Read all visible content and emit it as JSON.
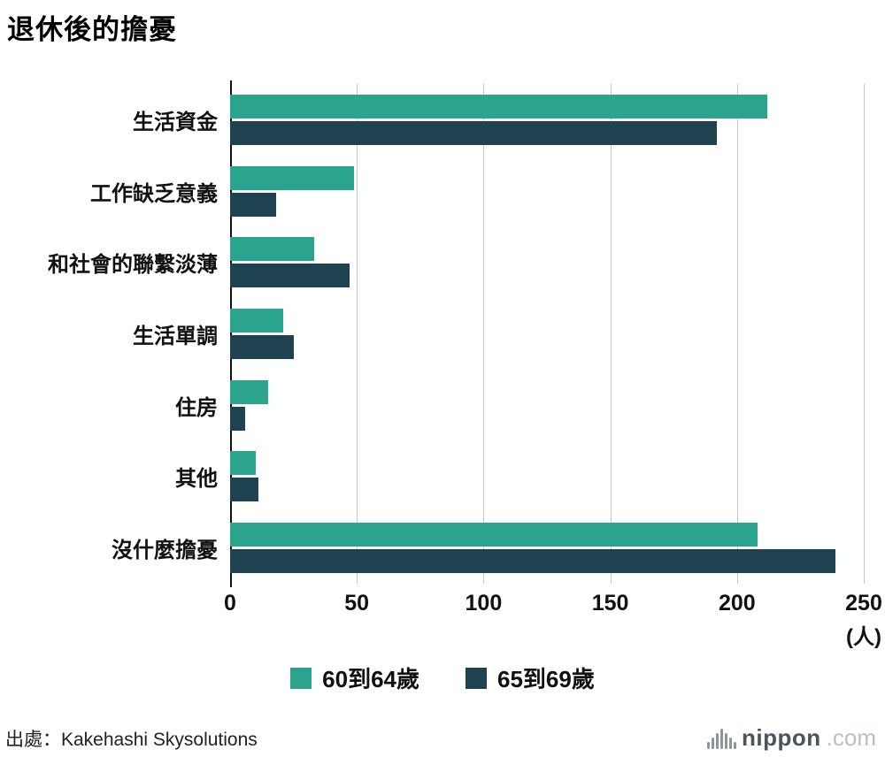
{
  "title": "退休後的擔憂",
  "source": "出處：Kakehashi Skysolutions",
  "logo": {
    "name": "nippon",
    "suffix": ".com"
  },
  "colors": {
    "series1": "#2aa48c",
    "series2": "#1e4250",
    "grid": "#c9c9c9",
    "axis": "#111111"
  },
  "chart_data": {
    "type": "bar",
    "orientation": "horizontal",
    "title": "退休後的擔憂",
    "categories": [
      "生活資金",
      "工作缺乏意義",
      "和社會的聯繫淡薄",
      "生活單調",
      "住房",
      "其他",
      "沒什麼擔憂"
    ],
    "series": [
      {
        "name": "60到64歲",
        "color": "#2aa48c",
        "values": [
          212,
          49,
          33,
          21,
          15,
          10,
          208
        ]
      },
      {
        "name": "65到69歲",
        "color": "#1e4250",
        "values": [
          192,
          18,
          47,
          25,
          6,
          11,
          239
        ]
      }
    ],
    "xlim": [
      0,
      250
    ],
    "xticks": [
      0,
      50,
      100,
      150,
      200,
      250
    ],
    "xlabel": "(人)",
    "grid": true,
    "legend_position": "bottom"
  }
}
